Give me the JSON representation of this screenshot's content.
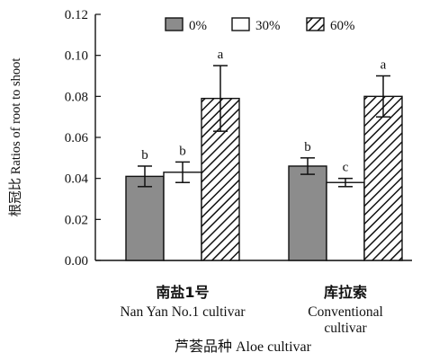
{
  "chart_data": {
    "type": "bar",
    "title": "",
    "ylabel": "根冠比 Ratios of root to shoot",
    "xlabel": "芦荟品种 Aloe cultivar",
    "ylim": [
      0,
      0.12
    ],
    "yticks": [
      "0.00",
      "0.02",
      "0.04",
      "0.06",
      "0.08",
      "0.10",
      "0.12"
    ],
    "categories": [
      {
        "zh": "南盐1号",
        "en": [
          "Nan Yan No.1 cultivar"
        ]
      },
      {
        "zh": "库拉索",
        "en": [
          "Conventional",
          "cultivar"
        ]
      }
    ],
    "series": [
      {
        "name": "0%",
        "fill": "gray",
        "values": [
          0.041,
          0.046
        ],
        "errors": [
          0.005,
          0.004
        ],
        "letters": [
          "b",
          "b"
        ]
      },
      {
        "name": "30%",
        "fill": "white",
        "values": [
          0.043,
          0.038
        ],
        "errors": [
          0.005,
          0.002
        ],
        "letters": [
          "b",
          "c"
        ]
      },
      {
        "name": "60%",
        "fill": "hatch",
        "values": [
          0.079,
          0.08
        ],
        "errors": [
          0.016,
          0.01
        ],
        "letters": [
          "a",
          "a"
        ]
      }
    ],
    "legend_position": "top"
  },
  "colors": {
    "gray": "#8c8c8c",
    "white": "#ffffff",
    "ink": "#111111"
  }
}
